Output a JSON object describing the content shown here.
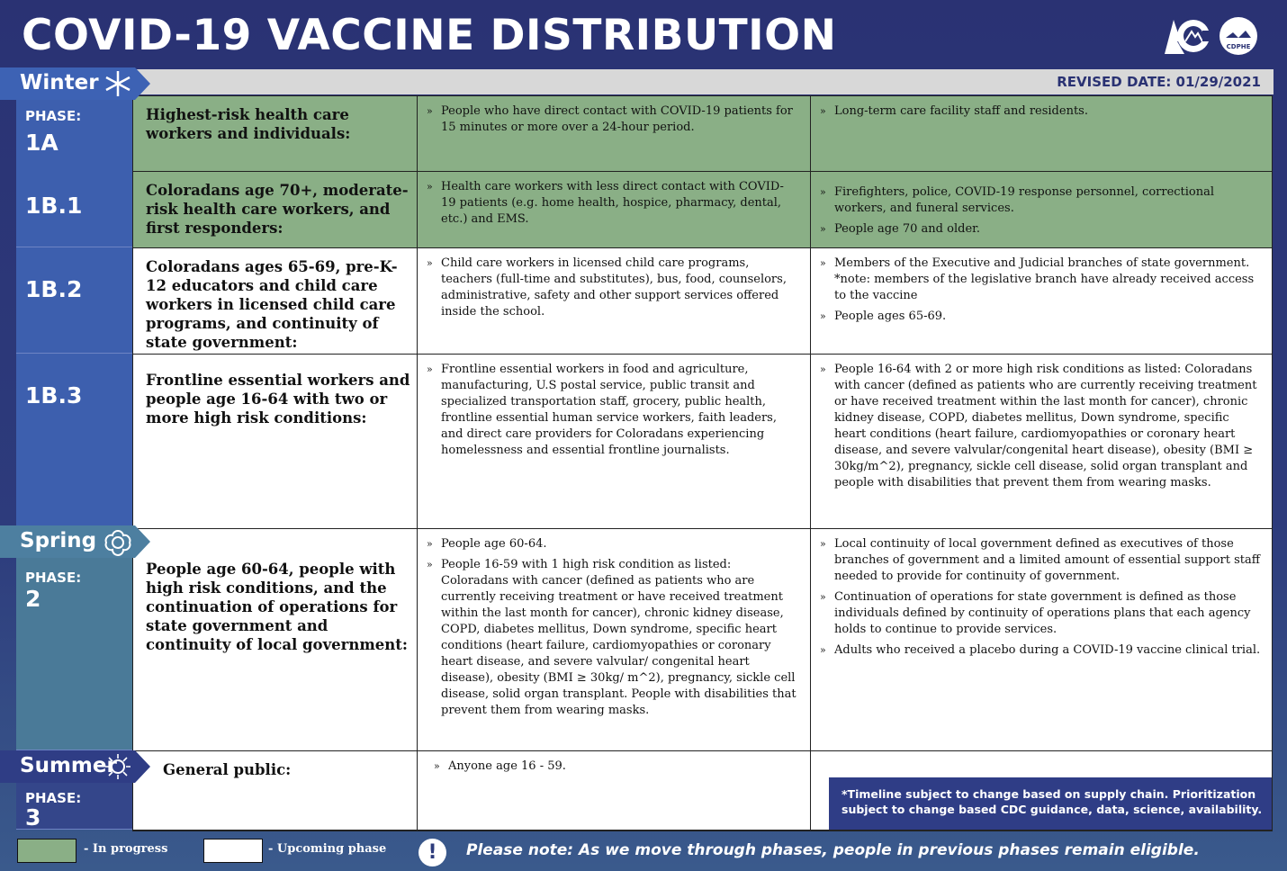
{
  "title": "COVID-19 VACCINE DISTRIBUTION",
  "revised_date": "REVISED DATE: 01/29/2021",
  "logo_text": "CDPHE",
  "colors": {
    "background": "#2a3273",
    "in_progress": "#8aaf86",
    "winter": "#3d5fae",
    "spring": "#4a7a98",
    "summer": "#34468a"
  },
  "seasons": [
    {
      "name": "Winter",
      "icon": "snowflake-icon"
    },
    {
      "name": "Spring",
      "icon": "flower-icon"
    },
    {
      "name": "Summer",
      "icon": "sun-icon"
    }
  ],
  "phase_label": "PHASE:",
  "rows": [
    {
      "phase": "1A",
      "show_label": true,
      "status": "in-progress",
      "group": "Highest-risk health care workers and individuals:",
      "col2": [
        "People who have direct contact with COVID-19 patients for 15 minutes or more over a 24-hour period."
      ],
      "col3": [
        "Long-term care facility staff and residents."
      ]
    },
    {
      "phase": "1B.1",
      "show_label": false,
      "status": "in-progress",
      "group": "Coloradans age 70+, moderate-risk health care workers, and first responders:",
      "col2": [
        "Health care workers with less direct contact with COVID-19 patients (e.g. home health, hospice, pharmacy, dental, etc.) and EMS."
      ],
      "col3": [
        "Firefighters, police, COVID-19 response personnel, correctional workers, and funeral services.",
        "People age 70 and older."
      ]
    },
    {
      "phase": "1B.2",
      "show_label": false,
      "status": "upcoming",
      "group": "Coloradans ages 65-69, pre-K-12 educators and child care workers in licensed child care programs, and continuity of state government:",
      "col2": [
        "Child care workers in licensed child care programs, teachers (full-time and substitutes), bus, food, counselors, administrative, safety and other support services offered inside the school."
      ],
      "col3": [
        "Members of the Executive and Judicial branches of state government. *note: members of the legislative branch have already received access to the vaccine",
        "People ages 65-69."
      ]
    },
    {
      "phase": "1B.3",
      "show_label": false,
      "status": "upcoming",
      "group": "Frontline essential workers and people age 16-64 with two or more high risk conditions:",
      "col2": [
        "Frontline essential workers in food and agriculture, manufacturing, U.S postal service, public transit and specialized transportation staff, grocery, public health, frontline essential human service workers, faith leaders, and direct care providers for Coloradans experiencing homelessness and essential frontline journalists."
      ],
      "col3": [
        "People 16-64 with 2 or more high risk conditions as listed: Coloradans with cancer (defined as patients who are currently receiving treatment or have received treatment within the last month for cancer), chronic kidney disease, COPD, diabetes mellitus, Down syndrome, specific heart conditions (heart failure, cardiomyopathies or coronary heart disease, and severe valvular/congenital heart disease), obesity (BMI ≥ 30kg/m^2), pregnancy, sickle cell disease, solid organ transplant and people with disabilities that prevent them from wearing masks."
      ]
    },
    {
      "phase": "2",
      "show_label": true,
      "status": "upcoming",
      "group": "People age 60-64, people with high risk conditions, and the continuation of operations for state government and continuity of local government:",
      "col2": [
        "People age 60-64.",
        "People 16-59 with 1 high risk condition as listed: Coloradans with cancer (defined as patients who are currently receiving treatment or have received treatment within the last month for cancer), chronic kidney disease, COPD, diabetes mellitus, Down syndrome, specific heart conditions (heart failure, cardiomyopathies or coronary heart disease, and severe valvular/ congenital heart disease), obesity (BMI ≥ 30kg/ m^2), pregnancy, sickle cell disease, solid organ transplant. People with disabilities that prevent them from wearing masks."
      ],
      "col3": [
        "Local continuity of local government defined as executives of those branches of government and a limited amount of essential support staff needed to provide for continuity of government.",
        "Continuation of operations for state government is defined as those individuals defined by continuity of operations plans that each agency holds to continue to provide services.",
        "Adults who received a placebo during a COVID-19 vaccine clinical trial."
      ]
    },
    {
      "phase": "3",
      "show_label": true,
      "status": "upcoming",
      "group": "General public:",
      "col2": [
        "Anyone age 16 - 59."
      ],
      "col3": []
    }
  ],
  "note_box": "*Timeline subject to change based on supply chain. Prioritization subject to change based CDC guidance,  data, science, availability.",
  "legend": {
    "in_progress": "- In progress",
    "upcoming": "- Upcoming phase"
  },
  "please_note": "Please note: As we move through phases, people in previous phases remain eligible."
}
